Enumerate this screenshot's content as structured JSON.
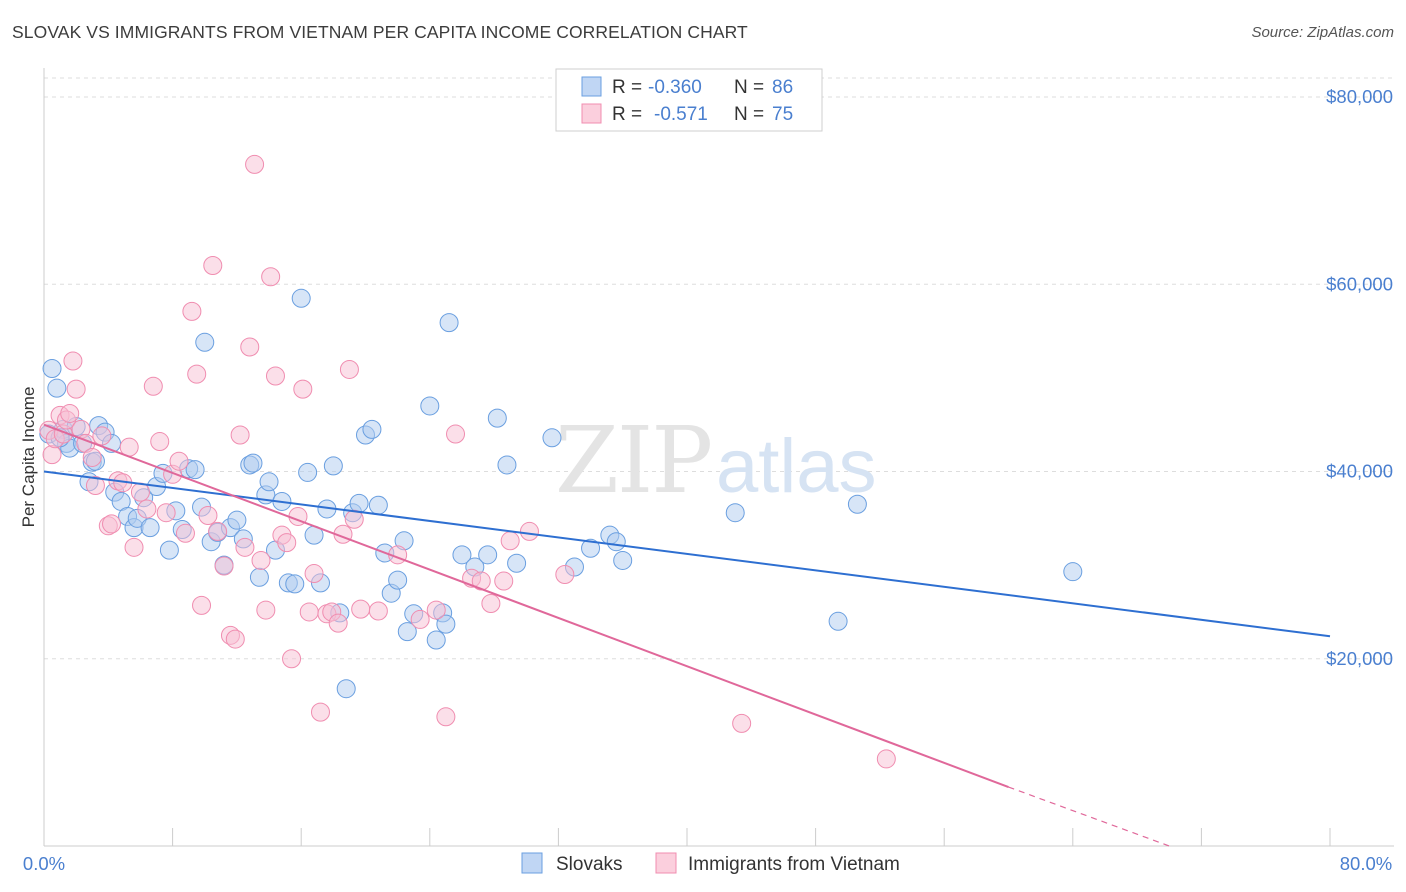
{
  "header": {
    "title": "SLOVAK VS IMMIGRANTS FROM VIETNAM PER CAPITA INCOME CORRELATION CHART",
    "source": "Source: ZipAtlas.com"
  },
  "watermark": {
    "zip": "ZIP",
    "atlas": "atlas"
  },
  "legend_top": {
    "r_label": "R =",
    "n_label": "N =",
    "rows": [
      {
        "r": "-0.360",
        "n": "86",
        "color": "#6a9fe0"
      },
      {
        "r": "-0.571",
        "n": "75",
        "color": "#f08db0"
      }
    ]
  },
  "chart_data": {
    "type": "scatter",
    "title": "SLOVAK VS IMMIGRANTS FROM VIETNAM PER CAPITA INCOME CORRELATION CHART",
    "xlabel": "",
    "ylabel": "Per Capita Income",
    "xlim": [
      0,
      80
    ],
    "ylim": [
      0,
      80000
    ],
    "x_tick_labels": [
      "0.0%",
      "80.0%"
    ],
    "y_ticks": [
      20000,
      40000,
      60000,
      80000
    ],
    "y_tick_labels": [
      "$20,000",
      "$40,000",
      "$60,000",
      "$80,000"
    ],
    "grid": true,
    "legend": "top-center",
    "series": [
      {
        "name": "Slovaks",
        "color": "#6a9fe0",
        "line_color": "#2e6fd1",
        "trend": {
          "x": [
            0,
            80
          ],
          "y": [
            40000,
            22400
          ]
        },
        "points": [
          [
            0.3,
            44000
          ],
          [
            0.5,
            51000
          ],
          [
            0.8,
            48900
          ],
          [
            1.2,
            44500
          ],
          [
            1.4,
            43000
          ],
          [
            1.6,
            42500
          ],
          [
            2.0,
            44800
          ],
          [
            2.4,
            43000
          ],
          [
            2.8,
            38900
          ],
          [
            3.0,
            41000
          ],
          [
            3.4,
            44900
          ],
          [
            3.8,
            44200
          ],
          [
            4.2,
            43000
          ],
          [
            4.4,
            37800
          ],
          [
            4.8,
            36800
          ],
          [
            5.2,
            35200
          ],
          [
            5.6,
            34000
          ],
          [
            5.8,
            35000
          ],
          [
            6.2,
            37200
          ],
          [
            6.6,
            34000
          ],
          [
            7.0,
            38400
          ],
          [
            7.4,
            39800
          ],
          [
            7.8,
            31600
          ],
          [
            8.2,
            35800
          ],
          [
            8.6,
            33800
          ],
          [
            9.0,
            40300
          ],
          [
            9.4,
            40200
          ],
          [
            9.8,
            36200
          ],
          [
            10.0,
            53800
          ],
          [
            10.4,
            32500
          ],
          [
            10.8,
            33500
          ],
          [
            11.2,
            30000
          ],
          [
            11.6,
            34000
          ],
          [
            12.0,
            34800
          ],
          [
            12.4,
            32800
          ],
          [
            12.8,
            40700
          ],
          [
            13.0,
            40900
          ],
          [
            13.4,
            28700
          ],
          [
            13.8,
            37500
          ],
          [
            14.0,
            38900
          ],
          [
            14.4,
            31600
          ],
          [
            14.8,
            36800
          ],
          [
            15.2,
            28100
          ],
          [
            15.6,
            28000
          ],
          [
            16.0,
            58500
          ],
          [
            16.4,
            39900
          ],
          [
            16.8,
            33200
          ],
          [
            17.2,
            28100
          ],
          [
            17.6,
            36000
          ],
          [
            18.0,
            40600
          ],
          [
            18.4,
            24900
          ],
          [
            18.8,
            16800
          ],
          [
            19.2,
            35600
          ],
          [
            19.6,
            36600
          ],
          [
            20.0,
            43900
          ],
          [
            20.4,
            44500
          ],
          [
            20.8,
            36400
          ],
          [
            21.2,
            31300
          ],
          [
            21.6,
            27000
          ],
          [
            22.0,
            28400
          ],
          [
            22.4,
            32600
          ],
          [
            22.6,
            22900
          ],
          [
            23.0,
            24800
          ],
          [
            24.0,
            47000
          ],
          [
            24.4,
            22000
          ],
          [
            24.8,
            24900
          ],
          [
            25.0,
            23700
          ],
          [
            25.2,
            55900
          ],
          [
            26.0,
            31100
          ],
          [
            26.8,
            29800
          ],
          [
            27.6,
            31100
          ],
          [
            28.2,
            45700
          ],
          [
            28.8,
            40700
          ],
          [
            29.4,
            30200
          ],
          [
            31.6,
            43600
          ],
          [
            33.0,
            29800
          ],
          [
            34.0,
            31800
          ],
          [
            35.2,
            33200
          ],
          [
            35.6,
            32500
          ],
          [
            36.0,
            30500
          ],
          [
            43.0,
            35600
          ],
          [
            49.4,
            24000
          ],
          [
            50.6,
            36500
          ],
          [
            64.0,
            29300
          ],
          [
            1.0,
            43600
          ],
          [
            3.2,
            41100
          ]
        ]
      },
      {
        "name": "Immigrants from Vietnam",
        "color": "#f08db0",
        "line_color": "#e0689a",
        "trend": {
          "x": [
            0,
            60
          ],
          "y": [
            45000,
            6300
          ]
        },
        "trend_dashed": {
          "x": [
            60,
            70
          ],
          "y": [
            6300,
            0
          ]
        },
        "points": [
          [
            0.3,
            44400
          ],
          [
            0.5,
            41800
          ],
          [
            0.7,
            43500
          ],
          [
            1.0,
            46000
          ],
          [
            1.2,
            44000
          ],
          [
            1.4,
            45500
          ],
          [
            1.6,
            46200
          ],
          [
            1.8,
            51800
          ],
          [
            2.0,
            48800
          ],
          [
            2.3,
            44500
          ],
          [
            2.6,
            43000
          ],
          [
            3.0,
            41500
          ],
          [
            3.2,
            38500
          ],
          [
            3.6,
            43800
          ],
          [
            4.0,
            34200
          ],
          [
            4.2,
            34400
          ],
          [
            4.6,
            39000
          ],
          [
            4.9,
            38800
          ],
          [
            5.3,
            42600
          ],
          [
            5.6,
            31900
          ],
          [
            6.0,
            37800
          ],
          [
            6.4,
            36000
          ],
          [
            6.8,
            49100
          ],
          [
            7.2,
            43200
          ],
          [
            7.6,
            35600
          ],
          [
            8.0,
            39700
          ],
          [
            8.4,
            41100
          ],
          [
            8.8,
            33400
          ],
          [
            9.2,
            57100
          ],
          [
            9.5,
            50400
          ],
          [
            9.8,
            25700
          ],
          [
            10.2,
            35300
          ],
          [
            10.5,
            62000
          ],
          [
            10.8,
            33600
          ],
          [
            11.2,
            29900
          ],
          [
            11.6,
            22500
          ],
          [
            11.9,
            22100
          ],
          [
            12.2,
            43900
          ],
          [
            12.5,
            31900
          ],
          [
            12.8,
            53300
          ],
          [
            13.1,
            72800
          ],
          [
            13.5,
            30500
          ],
          [
            13.8,
            25200
          ],
          [
            14.1,
            60800
          ],
          [
            14.4,
            50200
          ],
          [
            14.8,
            33200
          ],
          [
            15.1,
            32400
          ],
          [
            15.4,
            20000
          ],
          [
            15.8,
            35200
          ],
          [
            16.1,
            48800
          ],
          [
            16.5,
            25000
          ],
          [
            16.8,
            29100
          ],
          [
            17.2,
            14300
          ],
          [
            17.6,
            24800
          ],
          [
            17.9,
            25000
          ],
          [
            18.3,
            23800
          ],
          [
            18.6,
            33300
          ],
          [
            19.0,
            50900
          ],
          [
            19.3,
            34900
          ],
          [
            19.7,
            25300
          ],
          [
            20.8,
            25100
          ],
          [
            22.0,
            31100
          ],
          [
            23.4,
            24200
          ],
          [
            24.4,
            25200
          ],
          [
            25.0,
            13800
          ],
          [
            25.6,
            44000
          ],
          [
            26.6,
            28600
          ],
          [
            27.2,
            28300
          ],
          [
            27.8,
            25900
          ],
          [
            28.6,
            28300
          ],
          [
            29.0,
            32600
          ],
          [
            30.2,
            33600
          ],
          [
            32.4,
            29000
          ],
          [
            43.4,
            13100
          ],
          [
            52.4,
            9300
          ]
        ]
      }
    ]
  },
  "legend_bottom": {
    "items": [
      {
        "label": "Slovaks",
        "color": "#6a9fe0"
      },
      {
        "label": "Immigrants from Vietnam",
        "color": "#f08db0"
      }
    ]
  }
}
